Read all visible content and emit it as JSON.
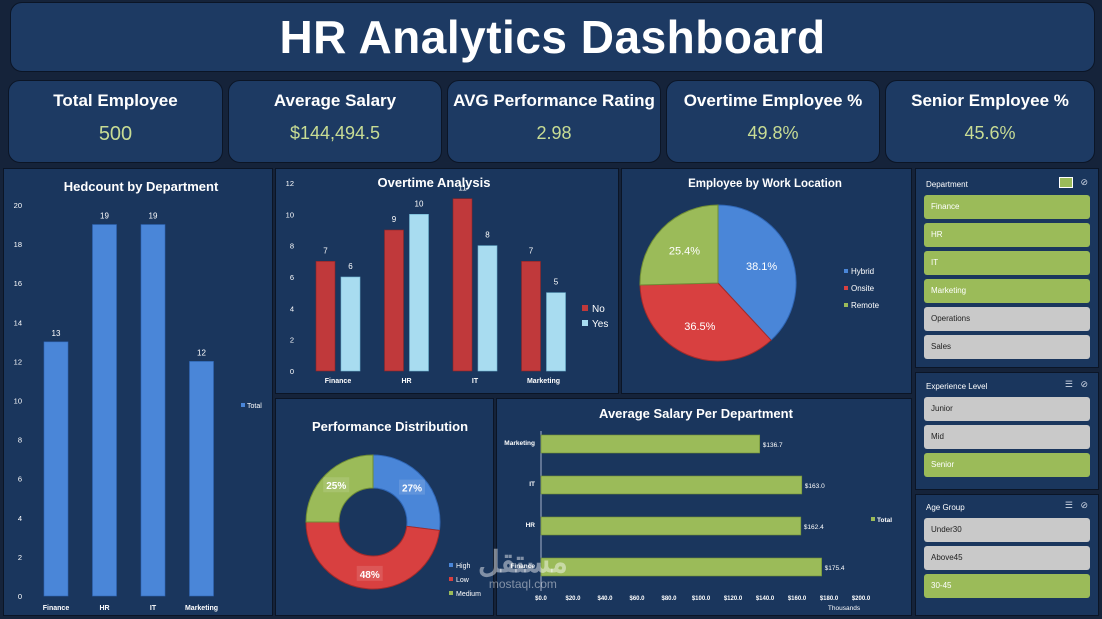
{
  "title": "HR Analytics Dashboard",
  "kpis": [
    {
      "label": "Total Employee",
      "value": "500"
    },
    {
      "label": "Average Salary",
      "value": "$144,494.5"
    },
    {
      "label": "AVG Performance Rating",
      "value": "2.98"
    },
    {
      "label": "Overtime Employee %",
      "value": "49.8%"
    },
    {
      "label": "Senior Employee %",
      "value": "45.6%"
    }
  ],
  "colors": {
    "bar_blue": "#4a86d8",
    "no_red": "#c0393b",
    "yes_cyan": "#a8dcf0",
    "green": "#9bbb59",
    "kpi_value": "#c8dc94"
  },
  "slicers": {
    "department": {
      "label": "Department",
      "items": [
        {
          "label": "Finance",
          "selected": true
        },
        {
          "label": "HR",
          "selected": true
        },
        {
          "label": "IT",
          "selected": true
        },
        {
          "label": "Marketing",
          "selected": true
        },
        {
          "label": "Operations",
          "selected": false
        },
        {
          "label": "Sales",
          "selected": false
        }
      ]
    },
    "experience": {
      "label": "Experience Level",
      "items": [
        {
          "label": "Junior",
          "selected": false
        },
        {
          "label": "Mid",
          "selected": false
        },
        {
          "label": "Senior",
          "selected": true
        }
      ]
    },
    "age": {
      "label": "Age Group",
      "items": [
        {
          "label": "Under30",
          "selected": false
        },
        {
          "label": "Above45",
          "selected": false
        },
        {
          "label": "30-45",
          "selected": true
        }
      ]
    }
  },
  "watermark": {
    "main": "مستقل",
    "sub": "mostaql.com"
  },
  "chart_data": [
    {
      "id": "headcount",
      "type": "bar",
      "title": "Hedcount by Department",
      "categories": [
        "Finance",
        "HR",
        "IT",
        "Marketing"
      ],
      "series": [
        {
          "name": "Total",
          "values": [
            13,
            19,
            19,
            12
          ]
        }
      ],
      "ylim": [
        0,
        20
      ],
      "yticks": [
        "0",
        "2",
        "4",
        "6",
        "8",
        "10",
        "12",
        "14",
        "16",
        "18",
        "20"
      ],
      "legend": "right"
    },
    {
      "id": "overtime",
      "type": "bar",
      "title": "Overtime Analysis",
      "categories": [
        "Finance",
        "HR",
        "IT",
        "Marketing"
      ],
      "series": [
        {
          "name": "No",
          "values": [
            7,
            9,
            11,
            7
          ]
        },
        {
          "name": "Yes",
          "values": [
            6,
            10,
            8,
            5
          ]
        }
      ],
      "ylim": [
        0,
        12
      ],
      "yticks": [
        "0",
        "2",
        "4",
        "6",
        "8",
        "10",
        "12"
      ],
      "legend": "right"
    },
    {
      "id": "location",
      "type": "pie",
      "title": "Employee by Work Location",
      "labels": [
        "Hybrid",
        "Onsite",
        "Remote"
      ],
      "values": [
        38.1,
        36.5,
        25.4
      ],
      "value_labels": [
        "38.1%",
        "36.5%",
        "25.4%"
      ],
      "legend": "right"
    },
    {
      "id": "performance",
      "type": "pie",
      "title": "Performance Distribution",
      "labels": [
        "High",
        "Low",
        "Medium"
      ],
      "values": [
        27,
        48,
        25
      ],
      "value_labels": [
        "27%",
        "48%",
        "25%"
      ],
      "legend": "bottom-right"
    },
    {
      "id": "salary",
      "type": "bar",
      "orientation": "horizontal",
      "title": "Average Salary Per Department",
      "categories": [
        "Marketing",
        "IT",
        "HR",
        "Finance"
      ],
      "series": [
        {
          "name": "Total",
          "values": [
            136.7,
            163.0,
            162.4,
            175.4
          ]
        }
      ],
      "value_labels": [
        "$136.7",
        "$163.0",
        "$162.4",
        "$175.4"
      ],
      "xlim": [
        0,
        200
      ],
      "xticks": [
        "$0.0",
        "$20.0",
        "$40.0",
        "$60.0",
        "$80.0",
        "$100.0",
        "$120.0",
        "$140.0",
        "$160.0",
        "$180.0",
        "$200.0"
      ],
      "xlabel": "Thousands",
      "legend": "right"
    }
  ]
}
